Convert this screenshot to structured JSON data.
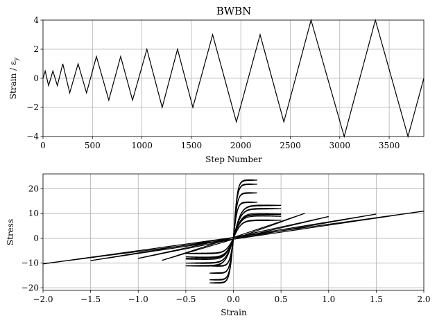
{
  "chart_data": [
    {
      "type": "line",
      "title": "BWBN",
      "xlabel": "Step Number",
      "ylabel": "Strain / ε",
      "ylabel_sub": "y",
      "xlim": [
        0,
        3850
      ],
      "ylim": [
        -4,
        4
      ],
      "xticks": [
        0,
        500,
        1000,
        1500,
        2000,
        2500,
        3000,
        3500
      ],
      "yticks": [
        -4,
        -2,
        0,
        2,
        4
      ],
      "grid": true,
      "series": [
        {
          "x": [
            0,
            22,
            56,
            100,
            145,
            200,
            270,
            355,
            440,
            540,
            665,
            785,
            905,
            1050,
            1205,
            1360,
            1515,
            1715,
            1955,
            2195,
            2435,
            2710,
            3045,
            3360,
            3690,
            3850
          ],
          "values": [
            0,
            0.5,
            -0.5,
            0.5,
            -0.5,
            1,
            -1,
            1,
            -1,
            1.5,
            -1.5,
            1.5,
            -1.5,
            2,
            -2,
            2,
            -2,
            3,
            -3,
            3,
            -3,
            4,
            -4,
            4,
            -4,
            0
          ]
        }
      ]
    },
    {
      "type": "line",
      "title": "",
      "xlabel": "Strain",
      "ylabel": "Stress",
      "xlim": [
        -2,
        2
      ],
      "ylim": [
        -21,
        26
      ],
      "xticks": [
        -2.0,
        -1.5,
        -1.0,
        -0.5,
        0.0,
        0.5,
        1.0,
        1.5,
        2.0
      ],
      "xtick_labels": [
        "−2.0",
        "−1.5",
        "−1.0",
        "−0.5",
        "0.0",
        "0.5",
        "1.0",
        "1.5",
        "2.0"
      ],
      "yticks": [
        -20,
        -10,
        0,
        10,
        20
      ],
      "grid": true,
      "amplitudes": [
        0.25,
        0.5,
        0.75,
        1.0,
        1.5,
        2.0
      ],
      "peak_stress": [
        23.5,
        13.3,
        10.1,
        8.8,
        9.8,
        11.0
      ],
      "min_stress": [
        -18.0,
        -11.1,
        -8.9,
        -8.1,
        -9.0,
        -10.3
      ]
    }
  ]
}
